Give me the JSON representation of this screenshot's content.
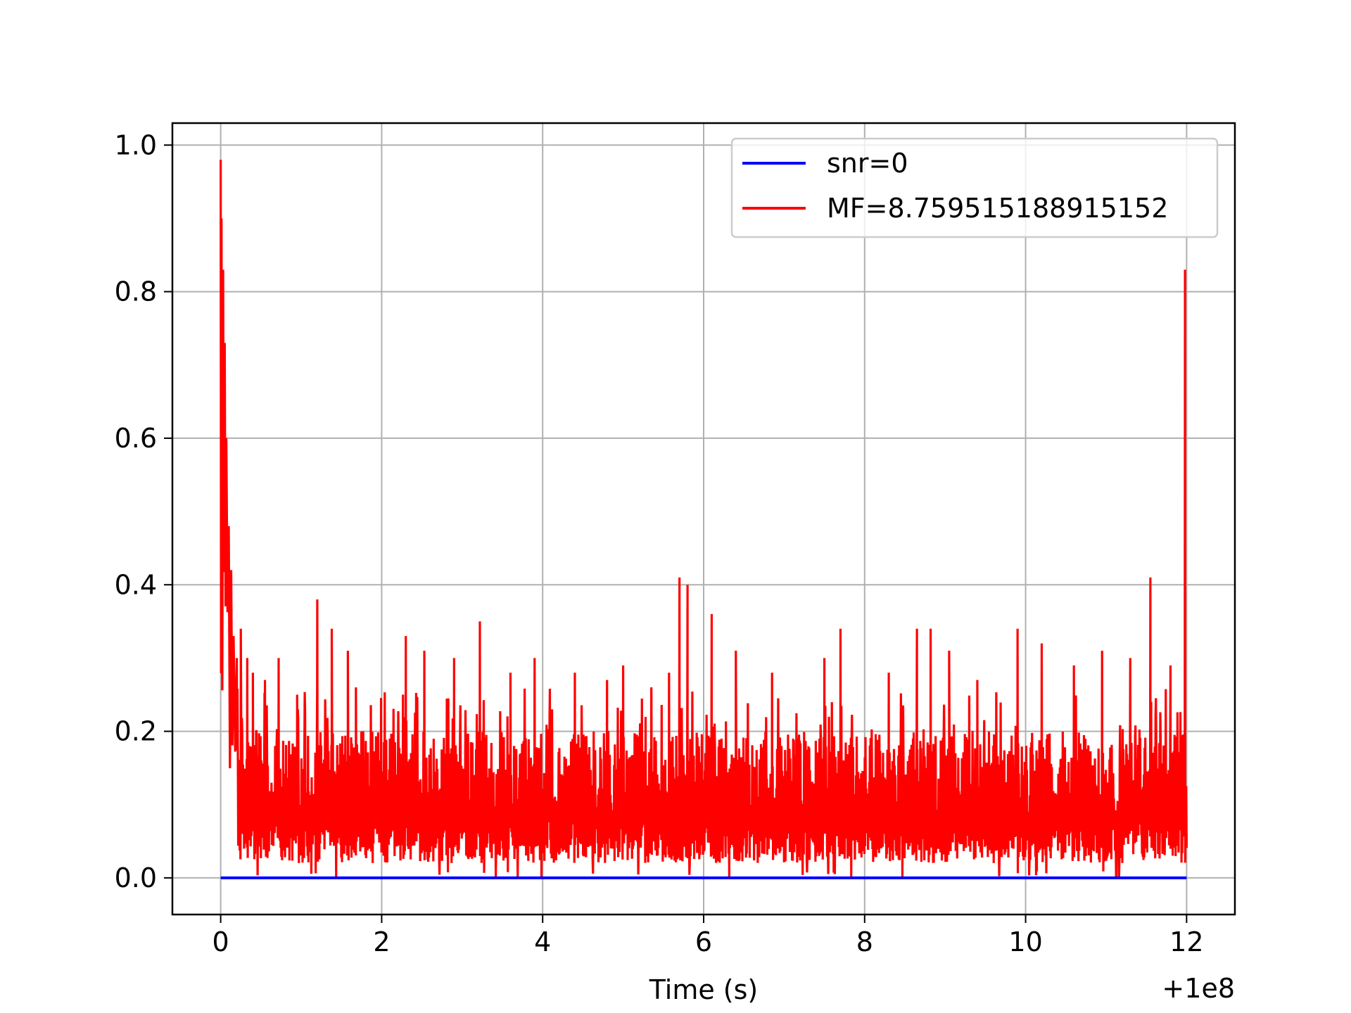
{
  "chart_data": {
    "type": "line",
    "title": "",
    "xlabel": "Time (s)",
    "ylabel": "",
    "x_offset_label": "+1e8",
    "xlim": [
      -0.6,
      12.6
    ],
    "ylim": [
      -0.05,
      1.03
    ],
    "grid": true,
    "legend_position": "top-right",
    "xticks": [
      0,
      2,
      4,
      6,
      8,
      10,
      12
    ],
    "xtick_labels": [
      "0",
      "2",
      "4",
      "6",
      "8",
      "10",
      "12"
    ],
    "yticks": [
      0.0,
      0.2,
      0.4,
      0.6,
      0.8,
      1.0
    ],
    "ytick_labels": [
      "0.0",
      "0.2",
      "0.4",
      "0.6",
      "0.8",
      "1.0"
    ],
    "series": [
      {
        "name": "snr=0",
        "color": "#0000ff",
        "x": [
          0,
          12
        ],
        "y": [
          0,
          0
        ]
      },
      {
        "name": "MF=8.759515188915152",
        "color": "#ff0000",
        "x_range": [
          0,
          12
        ],
        "initial_decay": {
          "x": [
            0,
            0.01,
            0.03,
            0.05,
            0.07,
            0.1,
            0.13,
            0.16,
            0.2
          ],
          "y": [
            0.98,
            0.9,
            0.83,
            0.73,
            0.6,
            0.48,
            0.42,
            0.33,
            0.3
          ]
        },
        "noise_band": {
          "min": 0.0,
          "typical_low": 0.02,
          "typical_high": 0.2
        },
        "peaks": [
          {
            "x": 0.25,
            "y": 0.34
          },
          {
            "x": 0.33,
            "y": 0.3
          },
          {
            "x": 0.4,
            "y": 0.28
          },
          {
            "x": 0.55,
            "y": 0.27
          },
          {
            "x": 0.72,
            "y": 0.3
          },
          {
            "x": 0.95,
            "y": 0.25
          },
          {
            "x": 1.2,
            "y": 0.38
          },
          {
            "x": 1.38,
            "y": 0.34
          },
          {
            "x": 1.58,
            "y": 0.31
          },
          {
            "x": 1.68,
            "y": 0.26
          },
          {
            "x": 2.3,
            "y": 0.33
          },
          {
            "x": 2.53,
            "y": 0.31
          },
          {
            "x": 2.9,
            "y": 0.3
          },
          {
            "x": 3.22,
            "y": 0.35
          },
          {
            "x": 3.6,
            "y": 0.28
          },
          {
            "x": 3.9,
            "y": 0.3
          },
          {
            "x": 4.4,
            "y": 0.28
          },
          {
            "x": 4.8,
            "y": 0.27
          },
          {
            "x": 5.0,
            "y": 0.29
          },
          {
            "x": 5.35,
            "y": 0.26
          },
          {
            "x": 5.57,
            "y": 0.28
          },
          {
            "x": 5.7,
            "y": 0.41
          },
          {
            "x": 5.8,
            "y": 0.4
          },
          {
            "x": 6.1,
            "y": 0.36
          },
          {
            "x": 6.4,
            "y": 0.31
          },
          {
            "x": 6.85,
            "y": 0.28
          },
          {
            "x": 7.5,
            "y": 0.3
          },
          {
            "x": 7.7,
            "y": 0.34
          },
          {
            "x": 8.3,
            "y": 0.28
          },
          {
            "x": 8.65,
            "y": 0.34
          },
          {
            "x": 8.82,
            "y": 0.34
          },
          {
            "x": 9.05,
            "y": 0.31
          },
          {
            "x": 9.4,
            "y": 0.27
          },
          {
            "x": 9.9,
            "y": 0.34
          },
          {
            "x": 10.2,
            "y": 0.32
          },
          {
            "x": 10.6,
            "y": 0.29
          },
          {
            "x": 10.95,
            "y": 0.31
          },
          {
            "x": 11.3,
            "y": 0.3
          },
          {
            "x": 11.55,
            "y": 0.41
          },
          {
            "x": 11.8,
            "y": 0.29
          },
          {
            "x": 11.98,
            "y": 0.83
          }
        ]
      }
    ]
  }
}
